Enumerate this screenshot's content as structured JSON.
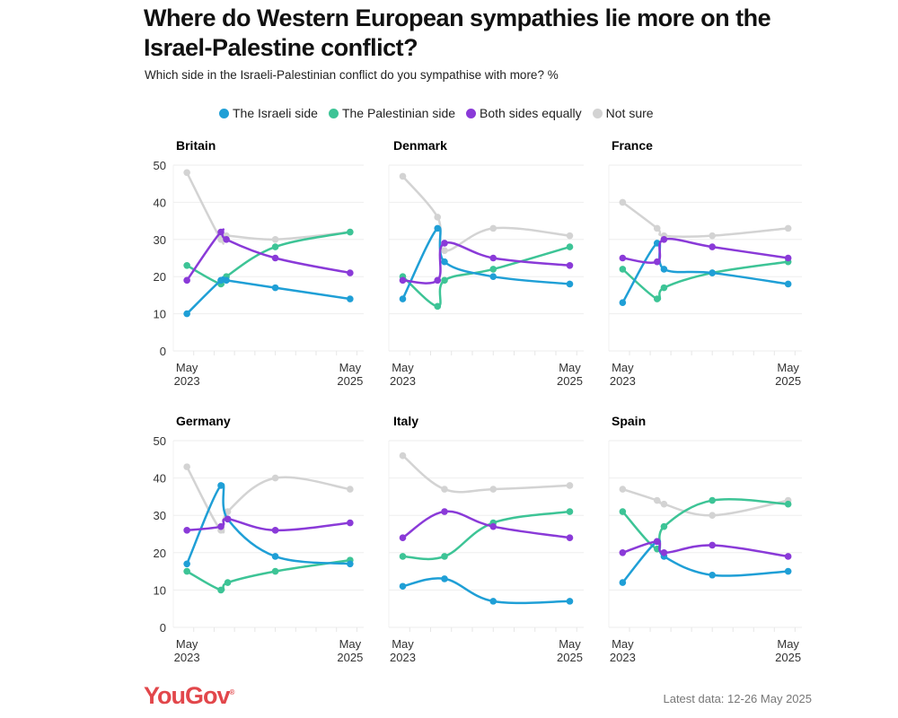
{
  "title": "Where do Western European sympathies lie more on the Israel-Palestine conflict?",
  "subtitle": "Which side in the Israeli-Palestinian conflict do you sympathise with more? %",
  "logo": "YouGov",
  "footnote": "Latest data: 12-26 May 2025",
  "legend": [
    {
      "label": "The Israeli side",
      "color": "#1f9fd6"
    },
    {
      "label": "The Palestinian side",
      "color": "#3dc496"
    },
    {
      "label": "Both sides equally",
      "color": "#8a3ad8"
    },
    {
      "label": "Not sure",
      "color": "#d3d3d3"
    }
  ],
  "chart_data": {
    "type": "line",
    "title": "Where do Western European sympathies lie more on the Israel-Palestine conflict?",
    "ylabel": "%",
    "ylim": [
      0,
      50
    ],
    "yticks": [
      0,
      10,
      20,
      30,
      40,
      50
    ],
    "xtick_labels": [
      [
        "May",
        "2023"
      ],
      [
        "May",
        "2025"
      ]
    ],
    "x_range_months": [
      -2,
      26
    ],
    "x_tick_months": [
      0,
      24
    ],
    "grid": true,
    "legend_position": "top-center",
    "panels": [
      {
        "name": "Britain",
        "x_months": [
          0,
          5,
          5.8,
          13,
          24
        ],
        "series": [
          {
            "name": "The Israeli side",
            "values": [
              10,
              19,
              19,
              17,
              14
            ]
          },
          {
            "name": "The Palestinian side",
            "values": [
              23,
              18,
              20,
              28,
              32
            ]
          },
          {
            "name": "Both sides equally",
            "values": [
              19,
              32,
              30,
              25,
              21
            ]
          },
          {
            "name": "Not sure",
            "values": [
              48,
              30,
              31,
              30,
              32
            ]
          }
        ]
      },
      {
        "name": "Denmark",
        "x_months": [
          0,
          5,
          6,
          13,
          24
        ],
        "series": [
          {
            "name": "The Israeli side",
            "values": [
              14,
              33,
              24,
              20,
              18
            ]
          },
          {
            "name": "The Palestinian side",
            "values": [
              20,
              12,
              19,
              22,
              28
            ]
          },
          {
            "name": "Both sides equally",
            "values": [
              19,
              19,
              29,
              25,
              23
            ]
          },
          {
            "name": "Not sure",
            "values": [
              47,
              36,
              27,
              33,
              31
            ]
          }
        ]
      },
      {
        "name": "France",
        "x_months": [
          0,
          5,
          6,
          13,
          24
        ],
        "series": [
          {
            "name": "The Israeli side",
            "values": [
              13,
              29,
              22,
              21,
              18
            ]
          },
          {
            "name": "The Palestinian side",
            "values": [
              22,
              14,
              17,
              21,
              24
            ]
          },
          {
            "name": "Both sides equally",
            "values": [
              25,
              24,
              30,
              28,
              25
            ]
          },
          {
            "name": "Not sure",
            "values": [
              40,
              33,
              31,
              31,
              33
            ]
          }
        ]
      },
      {
        "name": "Germany",
        "x_months": [
          0,
          5,
          6,
          13,
          24
        ],
        "series": [
          {
            "name": "The Israeli side",
            "values": [
              17,
              38,
              29,
              19,
              17
            ]
          },
          {
            "name": "The Palestinian side",
            "values": [
              15,
              10,
              12,
              15,
              18
            ]
          },
          {
            "name": "Both sides equally",
            "values": [
              26,
              27,
              29,
              26,
              28
            ]
          },
          {
            "name": "Not sure",
            "values": [
              43,
              26,
              31,
              40,
              37
            ]
          }
        ]
      },
      {
        "name": "Italy",
        "x_months": [
          0,
          6,
          13,
          24
        ],
        "series": [
          {
            "name": "The Israeli side",
            "values": [
              11,
              13,
              7,
              7
            ]
          },
          {
            "name": "The Palestinian side",
            "values": [
              19,
              19,
              28,
              31
            ]
          },
          {
            "name": "Both sides equally",
            "values": [
              24,
              31,
              27,
              24
            ]
          },
          {
            "name": "Not sure",
            "values": [
              46,
              37,
              37,
              38
            ]
          }
        ]
      },
      {
        "name": "Spain",
        "x_months": [
          0,
          5,
          6,
          13,
          24
        ],
        "series": [
          {
            "name": "The Israeli side",
            "values": [
              12,
              23,
              19,
              14,
              15
            ]
          },
          {
            "name": "The Palestinian side",
            "values": [
              31,
              21,
              27,
              34,
              33
            ]
          },
          {
            "name": "Both sides equally",
            "values": [
              20,
              23,
              20,
              22,
              19
            ]
          },
          {
            "name": "Not sure",
            "values": [
              37,
              34,
              33,
              30,
              34
            ]
          }
        ]
      }
    ]
  }
}
